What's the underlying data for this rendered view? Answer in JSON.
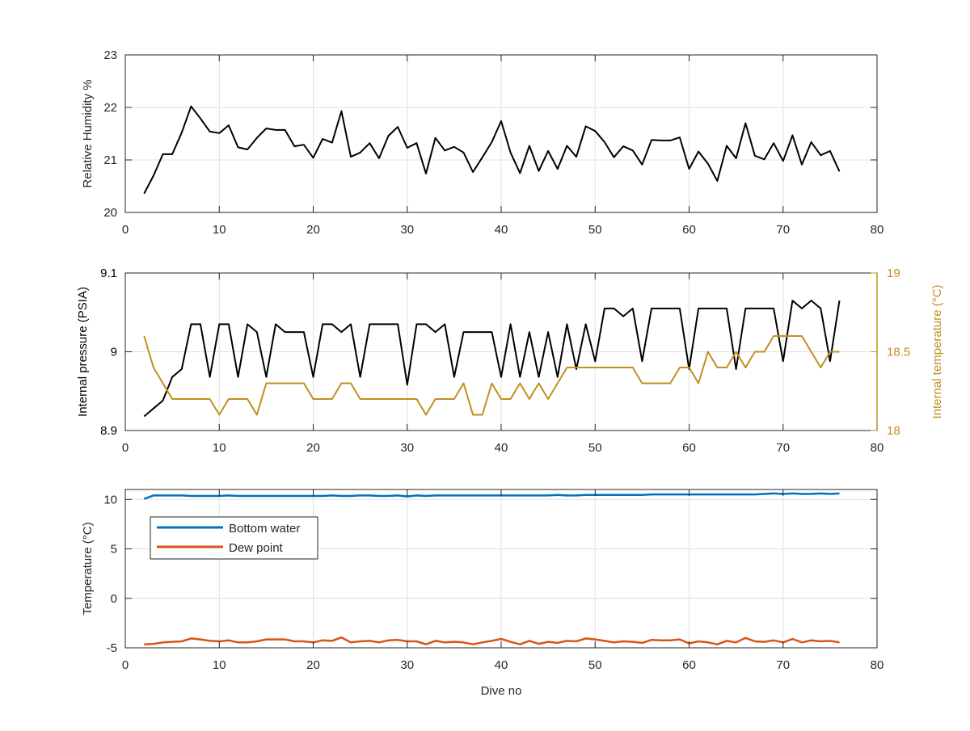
{
  "chart_data": [
    {
      "type": "line",
      "ylabel": "Relative Humidity %",
      "xlim": [
        0,
        80
      ],
      "ylim": [
        20,
        23
      ],
      "xticks": [
        "0",
        "10",
        "20",
        "30",
        "40",
        "50",
        "60",
        "70",
        "80"
      ],
      "yticks": [
        "20",
        "21",
        "22",
        "23"
      ],
      "grid": true,
      "series": [
        {
          "color": "#000000",
          "x": [
            2,
            3,
            4,
            5,
            6,
            7,
            8,
            9,
            10,
            11,
            12,
            13,
            14,
            15,
            16,
            17,
            18,
            19,
            20,
            21,
            22,
            23,
            24,
            25,
            26,
            27,
            28,
            29,
            30,
            31,
            32,
            33,
            34,
            35,
            36,
            37,
            38,
            39,
            40,
            41,
            42,
            43,
            44,
            45,
            46,
            47,
            48,
            49,
            50,
            51,
            52,
            53,
            54,
            55,
            56,
            57,
            58,
            59,
            60,
            61,
            62,
            63,
            64,
            65,
            66,
            67,
            68,
            69,
            70,
            71,
            72,
            73,
            74,
            75,
            76
          ],
          "values": [
            20.36,
            20.7,
            21.11,
            21.11,
            21.52,
            22.02,
            21.79,
            21.54,
            21.51,
            21.66,
            21.24,
            21.2,
            21.42,
            21.6,
            21.57,
            21.57,
            21.26,
            21.29,
            21.04,
            21.4,
            21.33,
            21.93,
            21.06,
            21.14,
            21.32,
            21.03,
            21.46,
            21.63,
            21.23,
            21.32,
            20.74,
            21.42,
            21.18,
            21.25,
            21.14,
            20.77,
            21.05,
            21.34,
            21.74,
            21.14,
            20.75,
            21.27,
            20.79,
            21.17,
            20.83,
            21.27,
            21.06,
            21.64,
            21.55,
            21.34,
            21.05,
            21.26,
            21.18,
            20.91,
            21.38,
            21.37,
            21.37,
            21.43,
            20.83,
            21.16,
            20.93,
            20.6,
            21.27,
            21.03,
            21.7,
            21.08,
            21.01,
            21.32,
            20.98,
            21.47,
            20.91,
            21.34,
            21.09,
            21.17,
            20.78
          ]
        }
      ]
    },
    {
      "type": "line",
      "ylabel": "Internal pressure (PSIA)",
      "y2label": "Internal temperature (°C)",
      "xlim": [
        0,
        80
      ],
      "ylim": [
        8.9,
        9.1
      ],
      "y2lim": [
        18,
        19
      ],
      "xticks": [
        "0",
        "10",
        "20",
        "30",
        "40",
        "50",
        "60",
        "70",
        "80"
      ],
      "yticks": [
        "8.9",
        "9",
        "9.1"
      ],
      "y2ticks": [
        "18",
        "18.5",
        "19"
      ],
      "grid": true,
      "colors": {
        "left_axis": "#000000",
        "right_axis": "#C18F1D"
      },
      "series": [
        {
          "axis": "left",
          "color": "#000000",
          "x": [
            2,
            3,
            4,
            5,
            6,
            7,
            8,
            9,
            10,
            11,
            12,
            13,
            14,
            15,
            16,
            17,
            18,
            19,
            20,
            21,
            22,
            23,
            24,
            25,
            26,
            27,
            28,
            29,
            30,
            31,
            32,
            33,
            34,
            35,
            36,
            37,
            38,
            39,
            40,
            41,
            42,
            43,
            44,
            45,
            46,
            47,
            48,
            49,
            50,
            51,
            52,
            53,
            54,
            55,
            56,
            57,
            58,
            59,
            60,
            61,
            62,
            63,
            64,
            65,
            66,
            67,
            68,
            69,
            70,
            71,
            72,
            73,
            74,
            75,
            76
          ],
          "values": [
            8.918,
            8.928,
            8.938,
            8.968,
            8.978,
            9.035,
            9.035,
            8.968,
            9.035,
            9.035,
            8.968,
            9.035,
            9.025,
            8.968,
            9.035,
            9.025,
            9.025,
            9.025,
            8.968,
            9.035,
            9.035,
            9.025,
            9.035,
            8.968,
            9.035,
            9.035,
            9.035,
            9.035,
            8.958,
            9.035,
            9.035,
            9.025,
            9.035,
            8.968,
            9.025,
            9.025,
            9.025,
            9.025,
            8.968,
            9.035,
            8.968,
            9.025,
            8.968,
            9.025,
            8.968,
            9.035,
            8.978,
            9.035,
            8.988,
            9.055,
            9.055,
            9.045,
            9.055,
            8.988,
            9.055,
            9.055,
            9.055,
            9.055,
            8.978,
            9.055,
            9.055,
            9.055,
            9.055,
            8.978,
            9.055,
            9.055,
            9.055,
            9.055,
            8.988,
            9.065,
            9.055,
            9.065,
            9.055,
            8.988,
            9.065
          ]
        },
        {
          "axis": "right",
          "color": "#C18F1D",
          "x": [
            2,
            3,
            4,
            5,
            6,
            7,
            8,
            9,
            10,
            11,
            12,
            13,
            14,
            15,
            16,
            17,
            18,
            19,
            20,
            21,
            22,
            23,
            24,
            25,
            26,
            27,
            28,
            29,
            30,
            31,
            32,
            33,
            34,
            35,
            36,
            37,
            38,
            39,
            40,
            41,
            42,
            43,
            44,
            45,
            46,
            47,
            48,
            49,
            50,
            51,
            52,
            53,
            54,
            55,
            56,
            57,
            58,
            59,
            60,
            61,
            62,
            63,
            64,
            65,
            66,
            67,
            68,
            69,
            70,
            71,
            72,
            73,
            74,
            75,
            76
          ],
          "values": [
            18.6,
            18.4,
            18.3,
            18.2,
            18.2,
            18.2,
            18.2,
            18.2,
            18.1,
            18.2,
            18.2,
            18.2,
            18.1,
            18.3,
            18.3,
            18.3,
            18.3,
            18.3,
            18.2,
            18.2,
            18.2,
            18.3,
            18.3,
            18.2,
            18.2,
            18.2,
            18.2,
            18.2,
            18.2,
            18.2,
            18.1,
            18.2,
            18.2,
            18.2,
            18.3,
            18.1,
            18.1,
            18.3,
            18.2,
            18.2,
            18.3,
            18.2,
            18.3,
            18.2,
            18.3,
            18.4,
            18.4,
            18.4,
            18.4,
            18.4,
            18.4,
            18.4,
            18.4,
            18.3,
            18.3,
            18.3,
            18.3,
            18.4,
            18.4,
            18.3,
            18.5,
            18.4,
            18.4,
            18.5,
            18.4,
            18.5,
            18.5,
            18.6,
            18.6,
            18.6,
            18.6,
            18.5,
            18.4,
            18.5,
            18.5
          ]
        }
      ]
    },
    {
      "type": "line",
      "xlabel": "Dive no",
      "ylabel": "Temperature (°C)",
      "xlim": [
        0,
        80
      ],
      "ylim": [
        -5,
        11
      ],
      "xticks": [
        "0",
        "10",
        "20",
        "30",
        "40",
        "50",
        "60",
        "70",
        "80"
      ],
      "yticks": [
        "-5",
        "0",
        "5",
        "10"
      ],
      "grid": true,
      "legend": "top-left",
      "series": [
        {
          "name": "Bottom water",
          "color": "#0072BD",
          "x": [
            2,
            3,
            4,
            5,
            6,
            7,
            8,
            9,
            10,
            11,
            12,
            13,
            14,
            15,
            16,
            17,
            18,
            19,
            20,
            21,
            22,
            23,
            24,
            25,
            26,
            27,
            28,
            29,
            30,
            31,
            32,
            33,
            34,
            35,
            36,
            37,
            38,
            39,
            40,
            41,
            42,
            43,
            44,
            45,
            46,
            47,
            48,
            49,
            50,
            51,
            52,
            53,
            54,
            55,
            56,
            57,
            58,
            59,
            60,
            61,
            62,
            63,
            64,
            65,
            66,
            67,
            68,
            69,
            70,
            71,
            72,
            73,
            74,
            75,
            76
          ],
          "values": [
            10.05,
            10.4,
            10.4,
            10.4,
            10.4,
            10.35,
            10.35,
            10.35,
            10.35,
            10.4,
            10.35,
            10.35,
            10.35,
            10.35,
            10.35,
            10.35,
            10.35,
            10.35,
            10.35,
            10.35,
            10.4,
            10.35,
            10.35,
            10.4,
            10.4,
            10.35,
            10.35,
            10.4,
            10.3,
            10.4,
            10.35,
            10.4,
            10.4,
            10.4,
            10.4,
            10.4,
            10.4,
            10.4,
            10.4,
            10.4,
            10.4,
            10.4,
            10.4,
            10.4,
            10.45,
            10.4,
            10.4,
            10.45,
            10.45,
            10.45,
            10.45,
            10.45,
            10.45,
            10.45,
            10.5,
            10.5,
            10.5,
            10.5,
            10.5,
            10.5,
            10.5,
            10.5,
            10.5,
            10.5,
            10.5,
            10.5,
            10.55,
            10.6,
            10.55,
            10.6,
            10.55,
            10.55,
            10.6,
            10.55,
            10.6
          ]
        },
        {
          "name": "Dew point",
          "color": "#D95319",
          "x": [
            2,
            3,
            4,
            5,
            6,
            7,
            8,
            9,
            10,
            11,
            12,
            13,
            14,
            15,
            16,
            17,
            18,
            19,
            20,
            21,
            22,
            23,
            24,
            25,
            26,
            27,
            28,
            29,
            30,
            31,
            32,
            33,
            34,
            35,
            36,
            37,
            38,
            39,
            40,
            41,
            42,
            43,
            44,
            45,
            46,
            47,
            48,
            49,
            50,
            51,
            52,
            53,
            54,
            55,
            56,
            57,
            58,
            59,
            60,
            61,
            62,
            63,
            64,
            65,
            66,
            67,
            68,
            69,
            70,
            71,
            72,
            73,
            74,
            75,
            76
          ],
          "values": [
            -4.65,
            -4.6,
            -4.45,
            -4.4,
            -4.35,
            -4.05,
            -4.15,
            -4.3,
            -4.35,
            -4.25,
            -4.45,
            -4.45,
            -4.35,
            -4.15,
            -4.15,
            -4.15,
            -4.35,
            -4.35,
            -4.45,
            -4.25,
            -4.3,
            -3.95,
            -4.45,
            -4.35,
            -4.3,
            -4.45,
            -4.25,
            -4.2,
            -4.35,
            -4.35,
            -4.65,
            -4.3,
            -4.45,
            -4.4,
            -4.45,
            -4.65,
            -4.45,
            -4.3,
            -4.1,
            -4.4,
            -4.65,
            -4.3,
            -4.6,
            -4.4,
            -4.5,
            -4.3,
            -4.35,
            -4.05,
            -4.15,
            -4.3,
            -4.45,
            -4.35,
            -4.4,
            -4.5,
            -4.2,
            -4.25,
            -4.25,
            -4.15,
            -4.55,
            -4.35,
            -4.45,
            -4.65,
            -4.3,
            -4.45,
            -4.0,
            -4.35,
            -4.4,
            -4.25,
            -4.45,
            -4.1,
            -4.45,
            -4.25,
            -4.35,
            -4.3,
            -4.45
          ]
        }
      ]
    }
  ]
}
